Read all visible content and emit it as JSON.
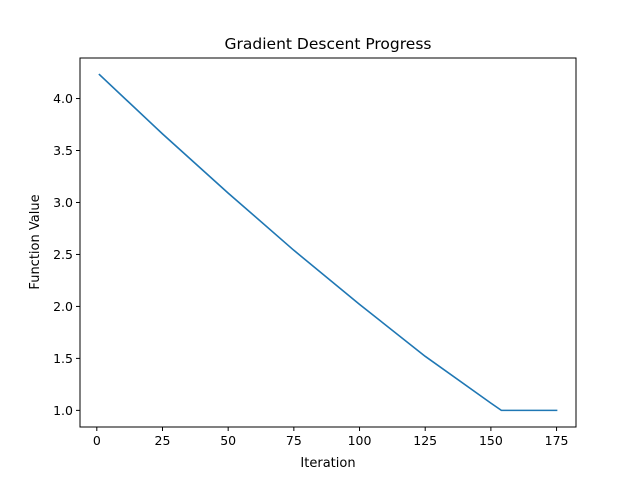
{
  "chart_data": {
    "type": "line",
    "title": "Gradient Descent Progress",
    "xlabel": "Iteration",
    "ylabel": "Function Value",
    "xlim": [
      -6.4,
      182.4
    ],
    "ylim": [
      0.84,
      4.39
    ],
    "xticks": [
      0,
      25,
      50,
      75,
      100,
      125,
      150,
      175
    ],
    "yticks": [
      1.0,
      1.5,
      2.0,
      2.5,
      3.0,
      3.5,
      4.0
    ],
    "xtick_labels": [
      "0",
      "25",
      "50",
      "75",
      "100",
      "125",
      "150",
      "175"
    ],
    "ytick_labels": [
      "1.0",
      "1.5",
      "2.0",
      "2.5",
      "3.0",
      "3.5",
      "4.0"
    ],
    "grid": false,
    "legend": "none",
    "series": [
      {
        "color": "#1f77b4",
        "x": [
          1,
          25,
          50,
          75,
          100,
          125,
          150,
          154,
          175
        ],
        "y": [
          4.23,
          3.66,
          3.09,
          2.54,
          2.02,
          1.52,
          1.07,
          1.0,
          1.0
        ]
      }
    ]
  }
}
